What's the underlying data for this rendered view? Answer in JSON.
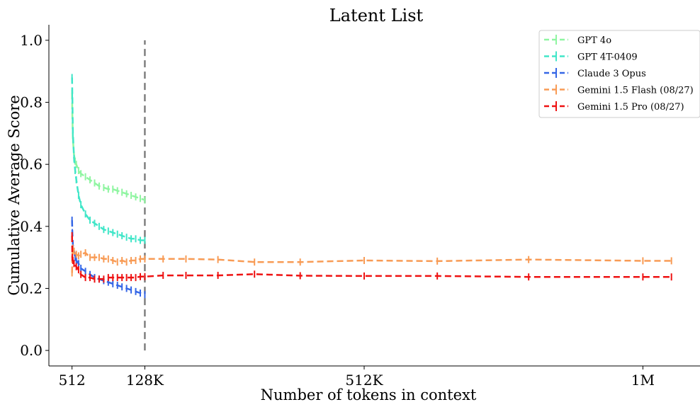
{
  "chart_data": {
    "type": "line",
    "title": "Latent List",
    "xlabel": "Number of tokens in context",
    "ylabel": "Cumulative Average Score",
    "xlim": [
      -40000,
      1100000
    ],
    "ylim": [
      -0.05,
      1.05
    ],
    "xticks": [
      {
        "value": 512,
        "label": "512"
      },
      {
        "value": 128000,
        "label": "128K"
      },
      {
        "value": 512000,
        "label": "512K"
      },
      {
        "value": 1000000,
        "label": "1M"
      }
    ],
    "yticks": [
      {
        "value": 0.0,
        "label": "0.0"
      },
      {
        "value": 0.2,
        "label": "0.2"
      },
      {
        "value": 0.4,
        "label": "0.4"
      },
      {
        "value": 0.6,
        "label": "0.6"
      },
      {
        "value": 0.8,
        "label": "0.8"
      },
      {
        "value": 1.0,
        "label": "1.0"
      }
    ],
    "vline": {
      "x": 128000,
      "y0": 0.0,
      "y1": 1.0,
      "color": "#808080"
    },
    "legend_position": "top-right",
    "grid": false,
    "series": [
      {
        "name": "GPT 4o",
        "color": "#8ff5a1",
        "x": [
          512,
          1000,
          2000,
          4000,
          6000,
          8000,
          12000,
          16000,
          24000,
          32000,
          40000,
          48000,
          56000,
          64000,
          72000,
          80000,
          88000,
          96000,
          104000,
          112000,
          120000,
          128000
        ],
        "y": [
          0.83,
          0.76,
          0.68,
          0.63,
          0.61,
          0.6,
          0.58,
          0.57,
          0.56,
          0.55,
          0.54,
          0.53,
          0.525,
          0.52,
          0.52,
          0.515,
          0.51,
          0.505,
          0.5,
          0.495,
          0.49,
          0.485
        ]
      },
      {
        "name": "GPT 4T-0409",
        "color": "#40e6c8",
        "x": [
          512,
          1000,
          2000,
          4000,
          6000,
          8000,
          12000,
          16000,
          24000,
          32000,
          40000,
          48000,
          56000,
          64000,
          72000,
          80000,
          88000,
          96000,
          104000,
          112000,
          120000,
          128000
        ],
        "y": [
          0.88,
          0.82,
          0.7,
          0.62,
          0.58,
          0.55,
          0.5,
          0.47,
          0.44,
          0.42,
          0.41,
          0.4,
          0.39,
          0.385,
          0.38,
          0.375,
          0.37,
          0.365,
          0.36,
          0.36,
          0.355,
          0.355
        ]
      },
      {
        "name": "Claude 3 Opus",
        "color": "#3566e6",
        "x": [
          512,
          1000,
          2000,
          4000,
          6000,
          8000,
          12000,
          16000,
          24000,
          32000,
          40000,
          48000,
          56000,
          64000,
          72000,
          80000,
          88000,
          96000,
          104000,
          112000,
          120000,
          128000
        ],
        "y": [
          0.42,
          0.38,
          0.34,
          0.32,
          0.3,
          0.29,
          0.28,
          0.265,
          0.255,
          0.245,
          0.235,
          0.23,
          0.225,
          0.22,
          0.215,
          0.21,
          0.205,
          0.2,
          0.195,
          0.19,
          0.185,
          0.18
        ]
      },
      {
        "name": "Gemini 1.5 Flash (08/27)",
        "color": "#f89b55",
        "x": [
          512,
          1000,
          2000,
          4000,
          8000,
          12000,
          16000,
          24000,
          32000,
          40000,
          48000,
          56000,
          64000,
          72000,
          80000,
          88000,
          96000,
          104000,
          112000,
          120000,
          128000,
          160000,
          200000,
          256000,
          320000,
          400000,
          512000,
          640000,
          800000,
          1000000,
          1050000
        ],
        "y": [
          0.25,
          0.31,
          0.33,
          0.32,
          0.31,
          0.305,
          0.31,
          0.315,
          0.3,
          0.3,
          0.3,
          0.295,
          0.295,
          0.29,
          0.285,
          0.29,
          0.285,
          0.29,
          0.29,
          0.295,
          0.295,
          0.295,
          0.295,
          0.293,
          0.285,
          0.285,
          0.29,
          0.288,
          0.293,
          0.289,
          0.289
        ]
      },
      {
        "name": "Gemini 1.5 Pro (08/27)",
        "color": "#ee1212",
        "x": [
          512,
          1000,
          2000,
          4000,
          8000,
          12000,
          16000,
          24000,
          32000,
          40000,
          48000,
          56000,
          64000,
          72000,
          80000,
          88000,
          96000,
          104000,
          112000,
          120000,
          128000,
          160000,
          200000,
          256000,
          320000,
          400000,
          512000,
          640000,
          800000,
          1000000,
          1050000
        ],
        "y": [
          0.37,
          0.3,
          0.29,
          0.28,
          0.27,
          0.26,
          0.245,
          0.235,
          0.235,
          0.23,
          0.23,
          0.23,
          0.235,
          0.235,
          0.235,
          0.235,
          0.235,
          0.235,
          0.235,
          0.238,
          0.238,
          0.242,
          0.242,
          0.242,
          0.246,
          0.241,
          0.24,
          0.24,
          0.237,
          0.237,
          0.237
        ]
      }
    ]
  }
}
